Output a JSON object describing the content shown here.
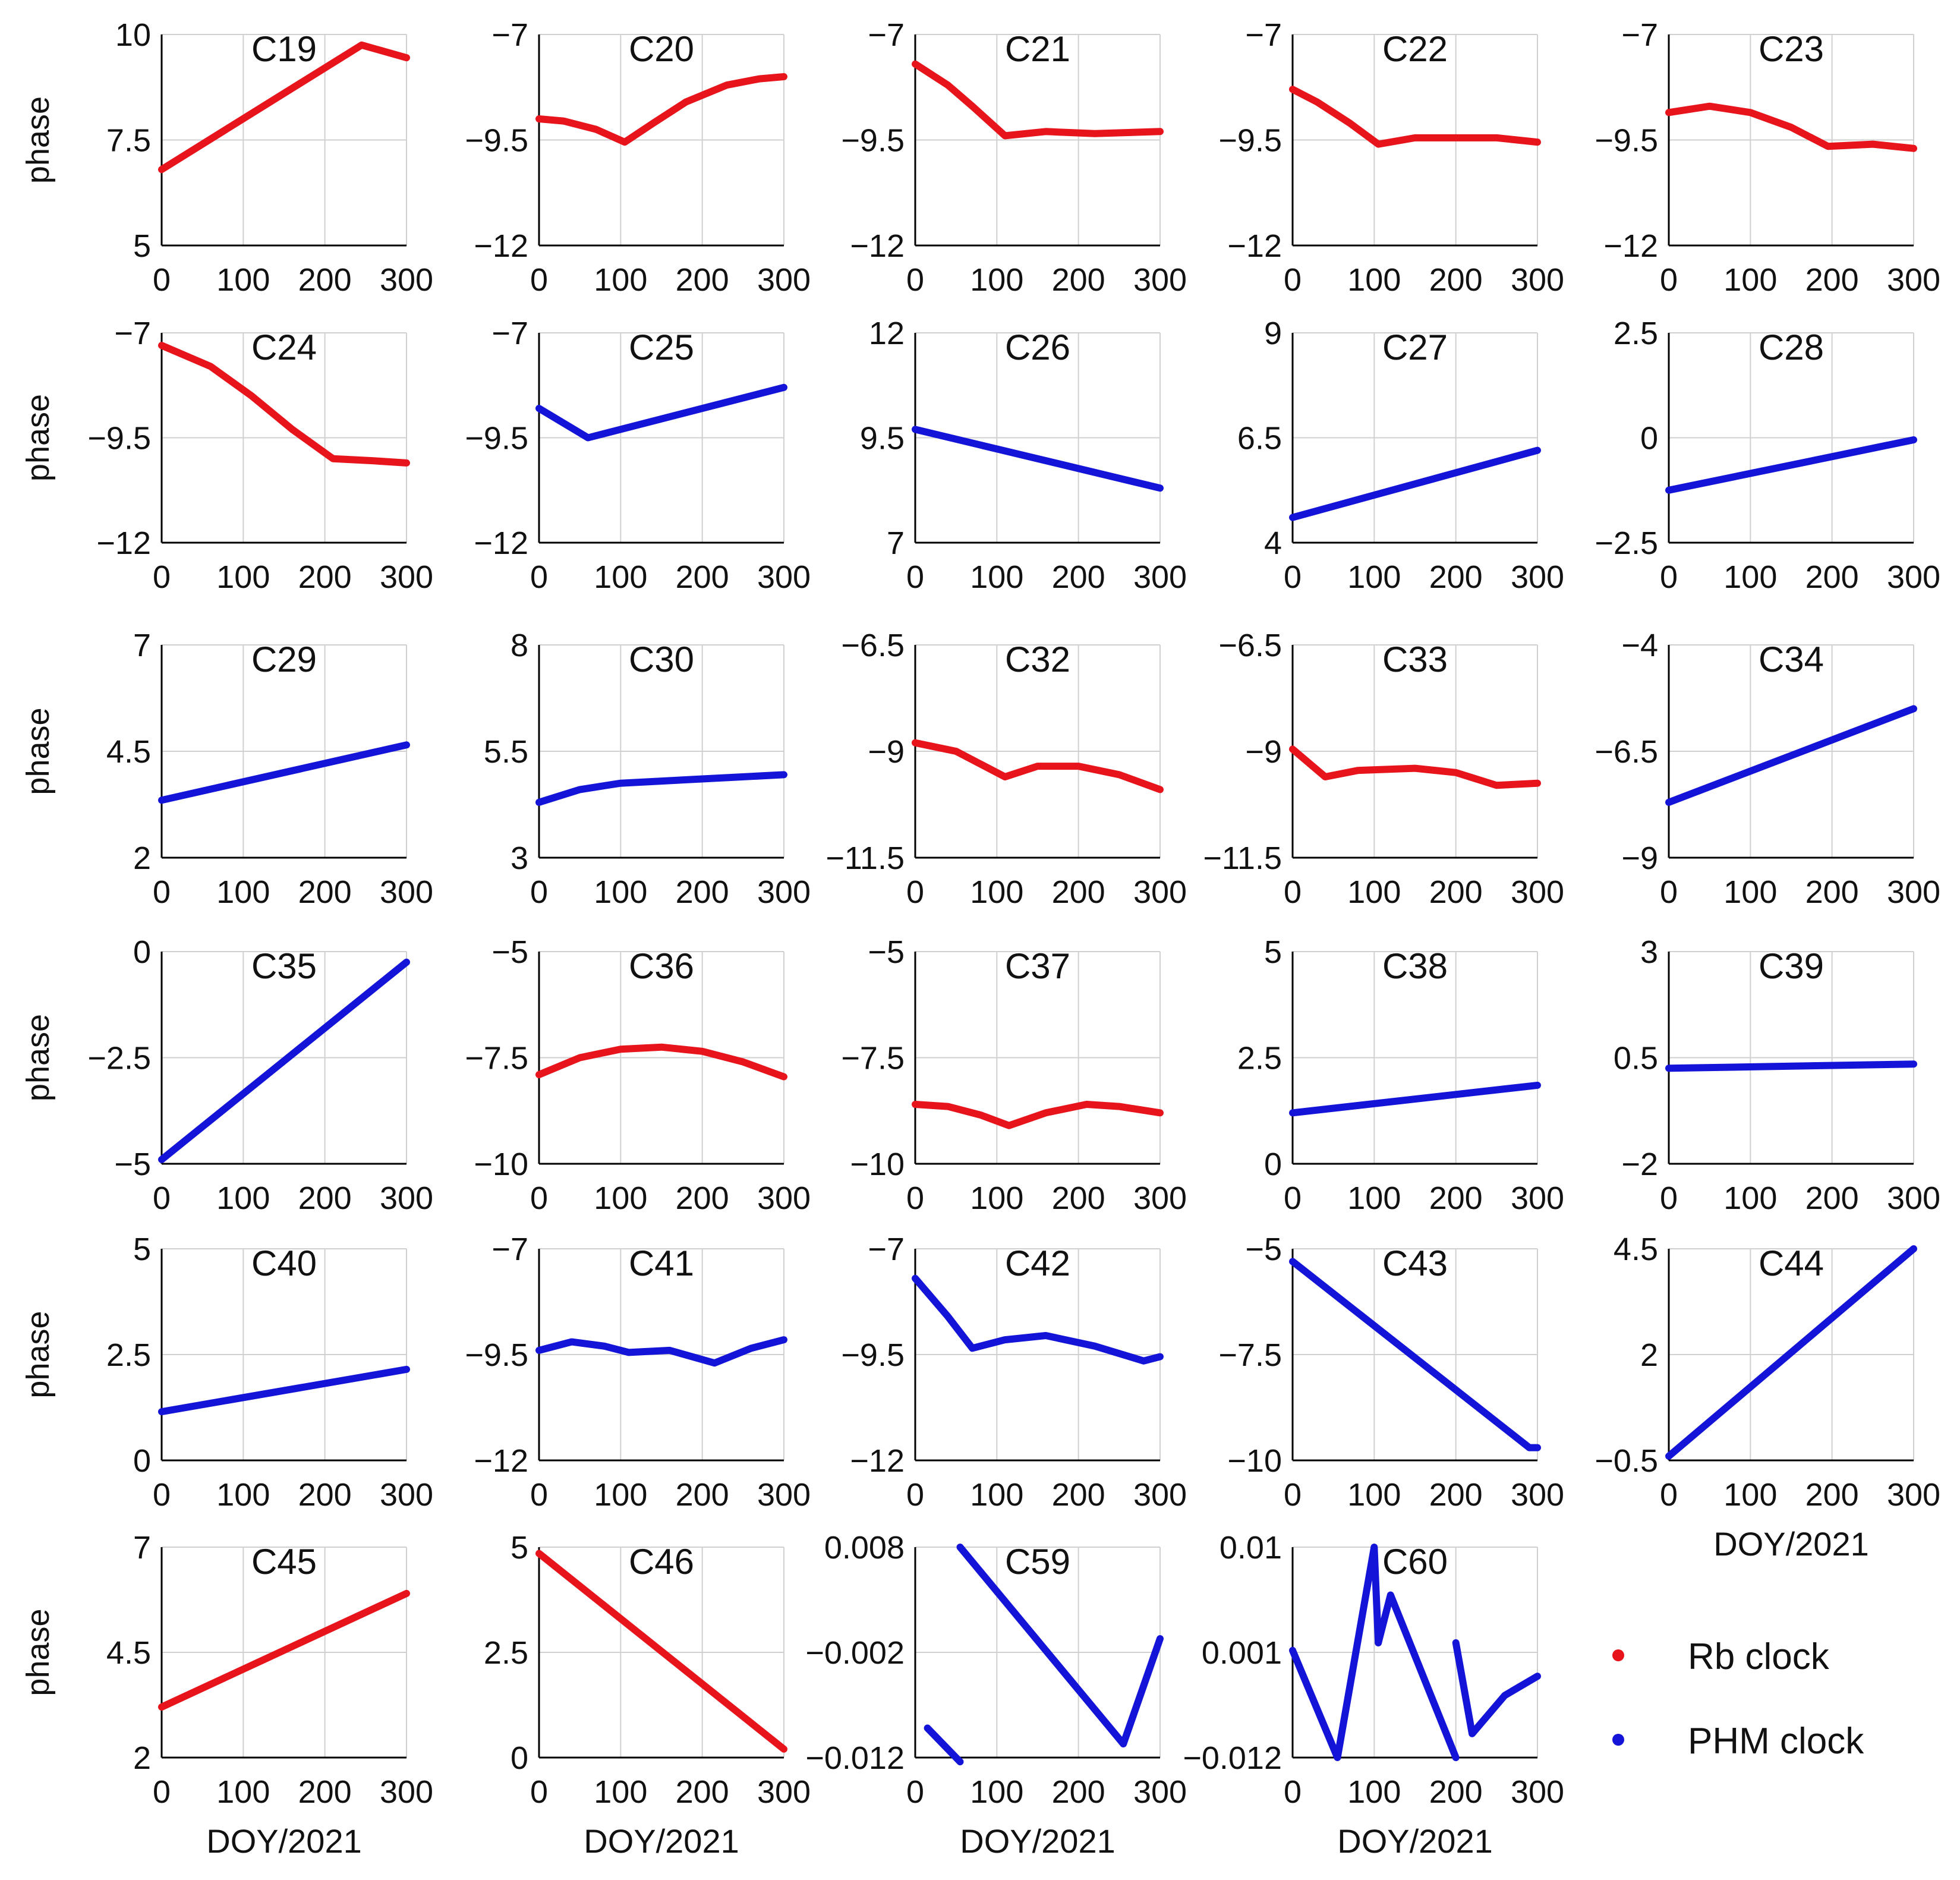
{
  "figure": {
    "ylabel": "phase",
    "xlabel": "DOY/2021",
    "legend": [
      {
        "label": "Rb clock",
        "color": "#e8141c"
      },
      {
        "label": "PHM clock",
        "color": "#1414d8"
      }
    ]
  },
  "chart_data": [
    {
      "type": "line",
      "title": "C19",
      "clock": "Rb clock",
      "ylim": [
        5,
        10
      ],
      "yticks": [
        "5",
        "7.5",
        "10"
      ],
      "xlim": [
        0,
        300
      ],
      "xticks": [
        "0",
        "100",
        "200",
        "300"
      ],
      "segments": [
        [
          [
            0,
            6.8
          ],
          [
            245,
            9.75
          ],
          [
            300,
            9.45
          ]
        ]
      ]
    },
    {
      "type": "line",
      "title": "C20",
      "clock": "Rb clock",
      "ylim": [
        -12,
        -7
      ],
      "yticks": [
        "−12",
        "−9.5",
        "−7"
      ],
      "xlim": [
        0,
        300
      ],
      "xticks": [
        "0",
        "100",
        "200",
        "300"
      ],
      "segments": [
        [
          [
            0,
            -9.0
          ],
          [
            30,
            -9.05
          ],
          [
            70,
            -9.25
          ],
          [
            105,
            -9.55
          ],
          [
            140,
            -9.1
          ],
          [
            180,
            -8.6
          ],
          [
            230,
            -8.2
          ],
          [
            270,
            -8.05
          ],
          [
            300,
            -8.0
          ]
        ]
      ]
    },
    {
      "type": "line",
      "title": "C21",
      "clock": "Rb clock",
      "ylim": [
        -12,
        -7
      ],
      "yticks": [
        "−12",
        "−9.5",
        "−7"
      ],
      "xlim": [
        0,
        300
      ],
      "xticks": [
        "0",
        "100",
        "200",
        "300"
      ],
      "segments": [
        [
          [
            0,
            -7.7
          ],
          [
            40,
            -8.2
          ],
          [
            70,
            -8.7
          ],
          [
            110,
            -9.4
          ],
          [
            160,
            -9.3
          ],
          [
            220,
            -9.35
          ],
          [
            300,
            -9.3
          ]
        ]
      ]
    },
    {
      "type": "line",
      "title": "C22",
      "clock": "Rb clock",
      "ylim": [
        -12,
        -7
      ],
      "yticks": [
        "−12",
        "−9.5",
        "−7"
      ],
      "xlim": [
        0,
        300
      ],
      "xticks": [
        "0",
        "100",
        "200",
        "300"
      ],
      "segments": [
        [
          [
            0,
            -8.3
          ],
          [
            30,
            -8.6
          ],
          [
            70,
            -9.1
          ],
          [
            105,
            -9.6
          ],
          [
            150,
            -9.45
          ],
          [
            250,
            -9.45
          ],
          [
            300,
            -9.55
          ]
        ]
      ]
    },
    {
      "type": "line",
      "title": "C23",
      "clock": "Rb clock",
      "ylim": [
        -12,
        -7
      ],
      "yticks": [
        "−12",
        "−9.5",
        "−7"
      ],
      "xlim": [
        0,
        300
      ],
      "xticks": [
        "0",
        "100",
        "200",
        "300"
      ],
      "segments": [
        [
          [
            0,
            -8.85
          ],
          [
            50,
            -8.7
          ],
          [
            100,
            -8.85
          ],
          [
            150,
            -9.2
          ],
          [
            195,
            -9.65
          ],
          [
            250,
            -9.6
          ],
          [
            300,
            -9.7
          ]
        ]
      ]
    },
    {
      "type": "line",
      "title": "C24",
      "clock": "Rb clock",
      "ylim": [
        -12,
        -7
      ],
      "yticks": [
        "−12",
        "−9.5",
        "−7"
      ],
      "xlim": [
        0,
        300
      ],
      "xticks": [
        "0",
        "100",
        "200",
        "300"
      ],
      "segments": [
        [
          [
            0,
            -7.3
          ],
          [
            60,
            -7.8
          ],
          [
            110,
            -8.5
          ],
          [
            160,
            -9.3
          ],
          [
            210,
            -10.0
          ],
          [
            260,
            -10.05
          ],
          [
            300,
            -10.1
          ]
        ]
      ]
    },
    {
      "type": "line",
      "title": "C25",
      "clock": "PHM clock",
      "ylim": [
        -12,
        -7
      ],
      "yticks": [
        "−12",
        "−9.5",
        "−7"
      ],
      "xlim": [
        0,
        300
      ],
      "xticks": [
        "0",
        "100",
        "200",
        "300"
      ],
      "segments": [
        [
          [
            0,
            -8.8
          ],
          [
            60,
            -9.5
          ],
          [
            300,
            -8.3
          ]
        ]
      ]
    },
    {
      "type": "line",
      "title": "C26",
      "clock": "PHM clock",
      "ylim": [
        7,
        12
      ],
      "yticks": [
        "7",
        "9.5",
        "12"
      ],
      "xlim": [
        0,
        300
      ],
      "xticks": [
        "0",
        "100",
        "200",
        "300"
      ],
      "segments": [
        [
          [
            0,
            9.7
          ],
          [
            300,
            8.3
          ]
        ]
      ]
    },
    {
      "type": "line",
      "title": "C27",
      "clock": "PHM clock",
      "ylim": [
        4,
        9
      ],
      "yticks": [
        "4",
        "6.5",
        "9"
      ],
      "xlim": [
        0,
        300
      ],
      "xticks": [
        "0",
        "100",
        "200",
        "300"
      ],
      "segments": [
        [
          [
            0,
            4.6
          ],
          [
            300,
            6.2
          ]
        ]
      ]
    },
    {
      "type": "line",
      "title": "C28",
      "clock": "PHM clock",
      "ylim": [
        -2.5,
        2.5
      ],
      "yticks": [
        "−2.5",
        "0",
        "2.5"
      ],
      "xlim": [
        0,
        300
      ],
      "xticks": [
        "0",
        "100",
        "200",
        "300"
      ],
      "segments": [
        [
          [
            0,
            -1.25
          ],
          [
            300,
            -0.05
          ]
        ]
      ]
    },
    {
      "type": "line",
      "title": "C29",
      "clock": "PHM clock",
      "ylim": [
        2,
        7
      ],
      "yticks": [
        "2",
        "4.5",
        "7"
      ],
      "xlim": [
        0,
        300
      ],
      "xticks": [
        "0",
        "100",
        "200",
        "300"
      ],
      "segments": [
        [
          [
            0,
            3.35
          ],
          [
            300,
            4.65
          ]
        ]
      ]
    },
    {
      "type": "line",
      "title": "C30",
      "clock": "PHM clock",
      "ylim": [
        3,
        8
      ],
      "yticks": [
        "3",
        "5.5",
        "8"
      ],
      "xlim": [
        0,
        300
      ],
      "xticks": [
        "0",
        "100",
        "200",
        "300"
      ],
      "segments": [
        [
          [
            0,
            4.3
          ],
          [
            50,
            4.6
          ],
          [
            100,
            4.75
          ],
          [
            200,
            4.85
          ],
          [
            300,
            4.95
          ]
        ]
      ]
    },
    {
      "type": "line",
      "title": "C32",
      "clock": "Rb clock",
      "ylim": [
        -11.5,
        -6.5
      ],
      "yticks": [
        "−11.5",
        "−9",
        "−6.5"
      ],
      "xlim": [
        0,
        300
      ],
      "xticks": [
        "0",
        "100",
        "200",
        "300"
      ],
      "segments": [
        [
          [
            0,
            -8.8
          ],
          [
            50,
            -9.0
          ],
          [
            110,
            -9.6
          ],
          [
            150,
            -9.35
          ],
          [
            200,
            -9.35
          ],
          [
            250,
            -9.55
          ],
          [
            300,
            -9.9
          ]
        ]
      ]
    },
    {
      "type": "line",
      "title": "C33",
      "clock": "Rb clock",
      "ylim": [
        -11.5,
        -6.5
      ],
      "yticks": [
        "−11.5",
        "−9",
        "−6.5"
      ],
      "xlim": [
        0,
        300
      ],
      "xticks": [
        "0",
        "100",
        "200",
        "300"
      ],
      "segments": [
        [
          [
            0,
            -8.95
          ],
          [
            40,
            -9.6
          ],
          [
            80,
            -9.45
          ],
          [
            150,
            -9.4
          ],
          [
            200,
            -9.5
          ],
          [
            250,
            -9.8
          ],
          [
            300,
            -9.75
          ]
        ]
      ]
    },
    {
      "type": "line",
      "title": "C34",
      "clock": "PHM clock",
      "ylim": [
        -9,
        -4
      ],
      "yticks": [
        "−9",
        "−6.5",
        "−4"
      ],
      "xlim": [
        0,
        300
      ],
      "xticks": [
        "0",
        "100",
        "200",
        "300"
      ],
      "segments": [
        [
          [
            0,
            -7.7
          ],
          [
            300,
            -5.5
          ]
        ]
      ]
    },
    {
      "type": "line",
      "title": "C35",
      "clock": "PHM clock",
      "ylim": [
        -5,
        0
      ],
      "yticks": [
        "−5",
        "−2.5",
        "0"
      ],
      "xlim": [
        0,
        300
      ],
      "xticks": [
        "0",
        "100",
        "200",
        "300"
      ],
      "segments": [
        [
          [
            0,
            -4.9
          ],
          [
            300,
            -0.25
          ]
        ]
      ]
    },
    {
      "type": "line",
      "title": "C36",
      "clock": "Rb clock",
      "ylim": [
        -10,
        -5
      ],
      "yticks": [
        "−10",
        "−7.5",
        "−5"
      ],
      "xlim": [
        0,
        300
      ],
      "xticks": [
        "0",
        "100",
        "200",
        "300"
      ],
      "segments": [
        [
          [
            0,
            -7.9
          ],
          [
            50,
            -7.5
          ],
          [
            100,
            -7.3
          ],
          [
            150,
            -7.25
          ],
          [
            200,
            -7.35
          ],
          [
            250,
            -7.6
          ],
          [
            300,
            -7.95
          ]
        ]
      ]
    },
    {
      "type": "line",
      "title": "C37",
      "clock": "Rb clock",
      "ylim": [
        -10,
        -5
      ],
      "yticks": [
        "−10",
        "−7.5",
        "−5"
      ],
      "xlim": [
        0,
        300
      ],
      "xticks": [
        "0",
        "100",
        "200",
        "300"
      ],
      "segments": [
        [
          [
            0,
            -8.6
          ],
          [
            40,
            -8.65
          ],
          [
            80,
            -8.85
          ],
          [
            115,
            -9.1
          ],
          [
            160,
            -8.8
          ],
          [
            210,
            -8.6
          ],
          [
            250,
            -8.65
          ],
          [
            300,
            -8.8
          ]
        ]
      ]
    },
    {
      "type": "line",
      "title": "C38",
      "clock": "PHM clock",
      "ylim": [
        0,
        5
      ],
      "yticks": [
        "0",
        "2.5",
        "5"
      ],
      "xlim": [
        0,
        300
      ],
      "xticks": [
        "0",
        "100",
        "200",
        "300"
      ],
      "segments": [
        [
          [
            0,
            1.2
          ],
          [
            300,
            1.85
          ]
        ]
      ]
    },
    {
      "type": "line",
      "title": "C39",
      "clock": "PHM clock",
      "ylim": [
        -2,
        3
      ],
      "yticks": [
        "−2",
        "0.5",
        "3"
      ],
      "xlim": [
        0,
        300
      ],
      "xticks": [
        "0",
        "100",
        "200",
        "300"
      ],
      "segments": [
        [
          [
            0,
            0.25
          ],
          [
            300,
            0.35
          ]
        ]
      ]
    },
    {
      "type": "line",
      "title": "C40",
      "clock": "PHM clock",
      "ylim": [
        0,
        5
      ],
      "yticks": [
        "0",
        "2.5",
        "5"
      ],
      "xlim": [
        0,
        300
      ],
      "xticks": [
        "0",
        "100",
        "200",
        "300"
      ],
      "segments": [
        [
          [
            0,
            1.15
          ],
          [
            300,
            2.15
          ]
        ]
      ]
    },
    {
      "type": "line",
      "title": "C41",
      "clock": "PHM clock",
      "ylim": [
        -12,
        -7
      ],
      "yticks": [
        "−12",
        "−9.5",
        "−7"
      ],
      "xlim": [
        0,
        300
      ],
      "xticks": [
        "0",
        "100",
        "200",
        "300"
      ],
      "segments": [
        [
          [
            0,
            -9.4
          ],
          [
            40,
            -9.2
          ],
          [
            80,
            -9.3
          ],
          [
            110,
            -9.45
          ],
          [
            160,
            -9.4
          ],
          [
            215,
            -9.7
          ],
          [
            260,
            -9.35
          ],
          [
            300,
            -9.15
          ]
        ]
      ]
    },
    {
      "type": "line",
      "title": "C42",
      "clock": "PHM clock",
      "ylim": [
        -12,
        -7
      ],
      "yticks": [
        "−12",
        "−9.5",
        "−7"
      ],
      "xlim": [
        0,
        300
      ],
      "xticks": [
        "0",
        "100",
        "200",
        "300"
      ],
      "segments": [
        [
          [
            0,
            -7.7
          ],
          [
            40,
            -8.6
          ],
          [
            70,
            -9.35
          ],
          [
            110,
            -9.15
          ],
          [
            160,
            -9.05
          ],
          [
            220,
            -9.3
          ],
          [
            280,
            -9.65
          ],
          [
            300,
            -9.55
          ]
        ]
      ]
    },
    {
      "type": "line",
      "title": "C43",
      "clock": "PHM clock",
      "ylim": [
        -10,
        -5
      ],
      "yticks": [
        "−10",
        "−7.5",
        "−5"
      ],
      "xlim": [
        0,
        300
      ],
      "xticks": [
        "0",
        "100",
        "200",
        "300"
      ],
      "segments": [
        [
          [
            0,
            -5.3
          ],
          [
            290,
            -9.7
          ],
          [
            300,
            -9.7
          ]
        ]
      ]
    },
    {
      "type": "line",
      "title": "C44",
      "clock": "PHM clock",
      "ylim": [
        -0.5,
        4.5
      ],
      "yticks": [
        "−0.5",
        "2",
        "4.5"
      ],
      "xlim": [
        0,
        300
      ],
      "xticks": [
        "0",
        "100",
        "200",
        "300"
      ],
      "segments": [
        [
          [
            0,
            -0.4
          ],
          [
            300,
            4.5
          ]
        ]
      ]
    },
    {
      "type": "line",
      "title": "C45",
      "clock": "Rb clock",
      "ylim": [
        2,
        7
      ],
      "yticks": [
        "2",
        "4.5",
        "7"
      ],
      "xlim": [
        0,
        300
      ],
      "xticks": [
        "0",
        "100",
        "200",
        "300"
      ],
      "segments": [
        [
          [
            0,
            3.2
          ],
          [
            300,
            5.9
          ]
        ]
      ]
    },
    {
      "type": "line",
      "title": "C46",
      "clock": "Rb clock",
      "ylim": [
        0,
        5
      ],
      "yticks": [
        "0",
        "2.5",
        "5"
      ],
      "xlim": [
        0,
        300
      ],
      "xticks": [
        "0",
        "100",
        "200",
        "300"
      ],
      "segments": [
        [
          [
            0,
            4.85
          ],
          [
            300,
            0.2
          ]
        ]
      ]
    },
    {
      "type": "line",
      "title": "C59",
      "clock": "PHM clock",
      "ylim": [
        -0.012,
        0.008
      ],
      "yticks": [
        "−0.012",
        "−0.002",
        "0.008"
      ],
      "xlim": [
        0,
        300
      ],
      "xticks": [
        "0",
        "100",
        "200",
        "300"
      ],
      "segments": [
        [
          [
            15,
            -0.0092
          ],
          [
            55,
            -0.0124
          ]
        ],
        [
          [
            55,
            0.008
          ],
          [
            255,
            -0.0107
          ],
          [
            300,
            -0.0007
          ]
        ]
      ]
    },
    {
      "type": "line",
      "title": "C60",
      "clock": "PHM clock",
      "ylim": [
        -0.012,
        0.01
      ],
      "yticks": [
        "−0.012",
        "0.001",
        "0.01"
      ],
      "xlim": [
        0,
        300
      ],
      "xticks": [
        "0",
        "100",
        "200",
        "300"
      ],
      "segments": [
        [
          [
            0,
            -0.0008
          ],
          [
            55,
            -0.012
          ],
          [
            100,
            0.01
          ],
          [
            105,
            0.0
          ]
        ],
        [
          [
            105,
            0.0
          ],
          [
            120,
            0.005
          ],
          [
            200,
            -0.012
          ]
        ],
        [
          [
            200,
            0.0
          ],
          [
            220,
            -0.0095
          ],
          [
            260,
            -0.0055
          ],
          [
            300,
            -0.0035
          ]
        ]
      ]
    }
  ]
}
